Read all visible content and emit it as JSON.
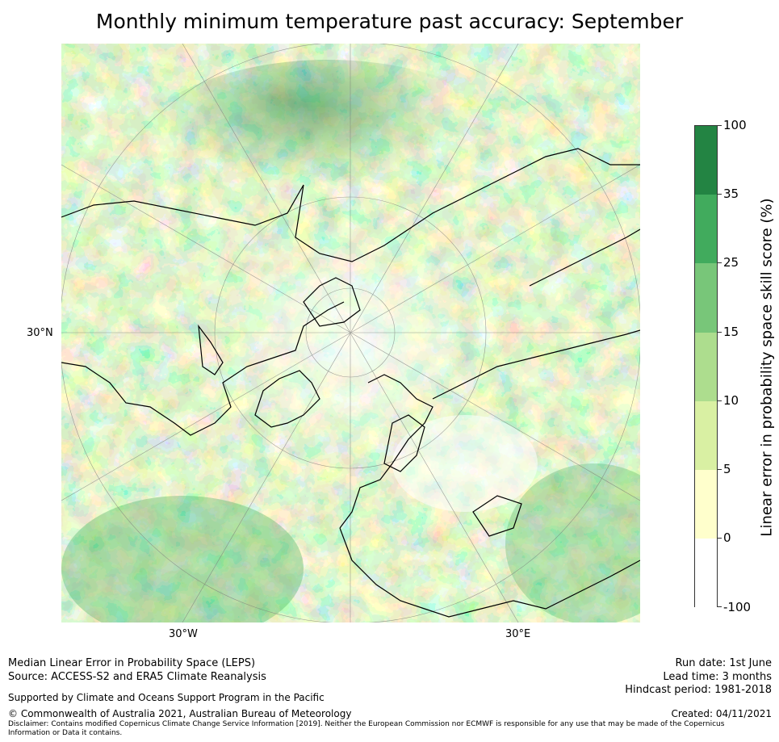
{
  "title": "Monthly minimum temperature past accuracy: September",
  "map": {
    "lon_labels": [
      "30°W",
      "30°E"
    ],
    "lat_label": "30°N"
  },
  "colorbar": {
    "label": "Linear error in probability space skill score (%)",
    "ticks": [
      "100",
      "35",
      "25",
      "15",
      "10",
      "5",
      "0",
      "-100"
    ],
    "colors": [
      "#238443",
      "#41ab5d",
      "#78c679",
      "#addd8e",
      "#d9f0a3",
      "#ffffcc",
      "#ffffff"
    ]
  },
  "footer": {
    "line1": "Median Linear Error in Probability Space (LEPS)",
    "line2": "Source: ACCESS-S2 and ERA5 Climate Reanalysis",
    "support": "Supported by Climate and Oceans Support Program in the Pacific",
    "copyright": "© Commonwealth of Australia 2021, Australian Bureau of Meteorology",
    "disclaimer": "Disclaimer: Contains modified Copernicus Climate Change Service Information [2019]. Neither the European Commission nor ECMWF is responsible for any use that may be made of the Copernicus Information or Data it contains.",
    "run_date": "Run date: 1st June",
    "lead_time": "Lead time: 3 months",
    "hindcast": "Hindcast period: 1981-2018",
    "created": "Created: 04/11/2021"
  }
}
